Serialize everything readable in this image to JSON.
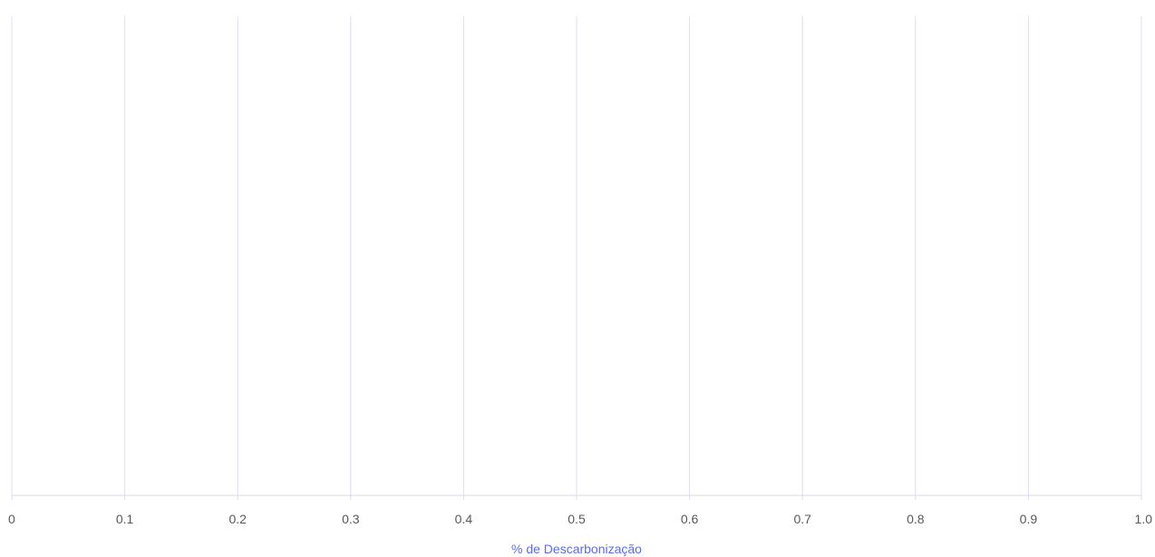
{
  "chart_data": {
    "type": "bar",
    "title": "",
    "xlabel": "% de Descarbonização",
    "ylabel": "",
    "xlim": [
      0,
      1.0
    ],
    "x_ticks": [
      "0",
      "0.1",
      "0.2",
      "0.3",
      "0.4",
      "0.5",
      "0.6",
      "0.7",
      "0.8",
      "0.9",
      "1.0"
    ],
    "x_tick_values": [
      0,
      0.1,
      0.2,
      0.3,
      0.4,
      0.5,
      0.6,
      0.7,
      0.8,
      0.9,
      1.0
    ],
    "categories": [],
    "values": [],
    "orientation": "horizontal",
    "grid": "vertical",
    "colors": {
      "grid": "#dcdcf8",
      "axis": "#d9d9e6",
      "tick_label": "#595959",
      "axis_title": "#5a6cf0"
    }
  }
}
